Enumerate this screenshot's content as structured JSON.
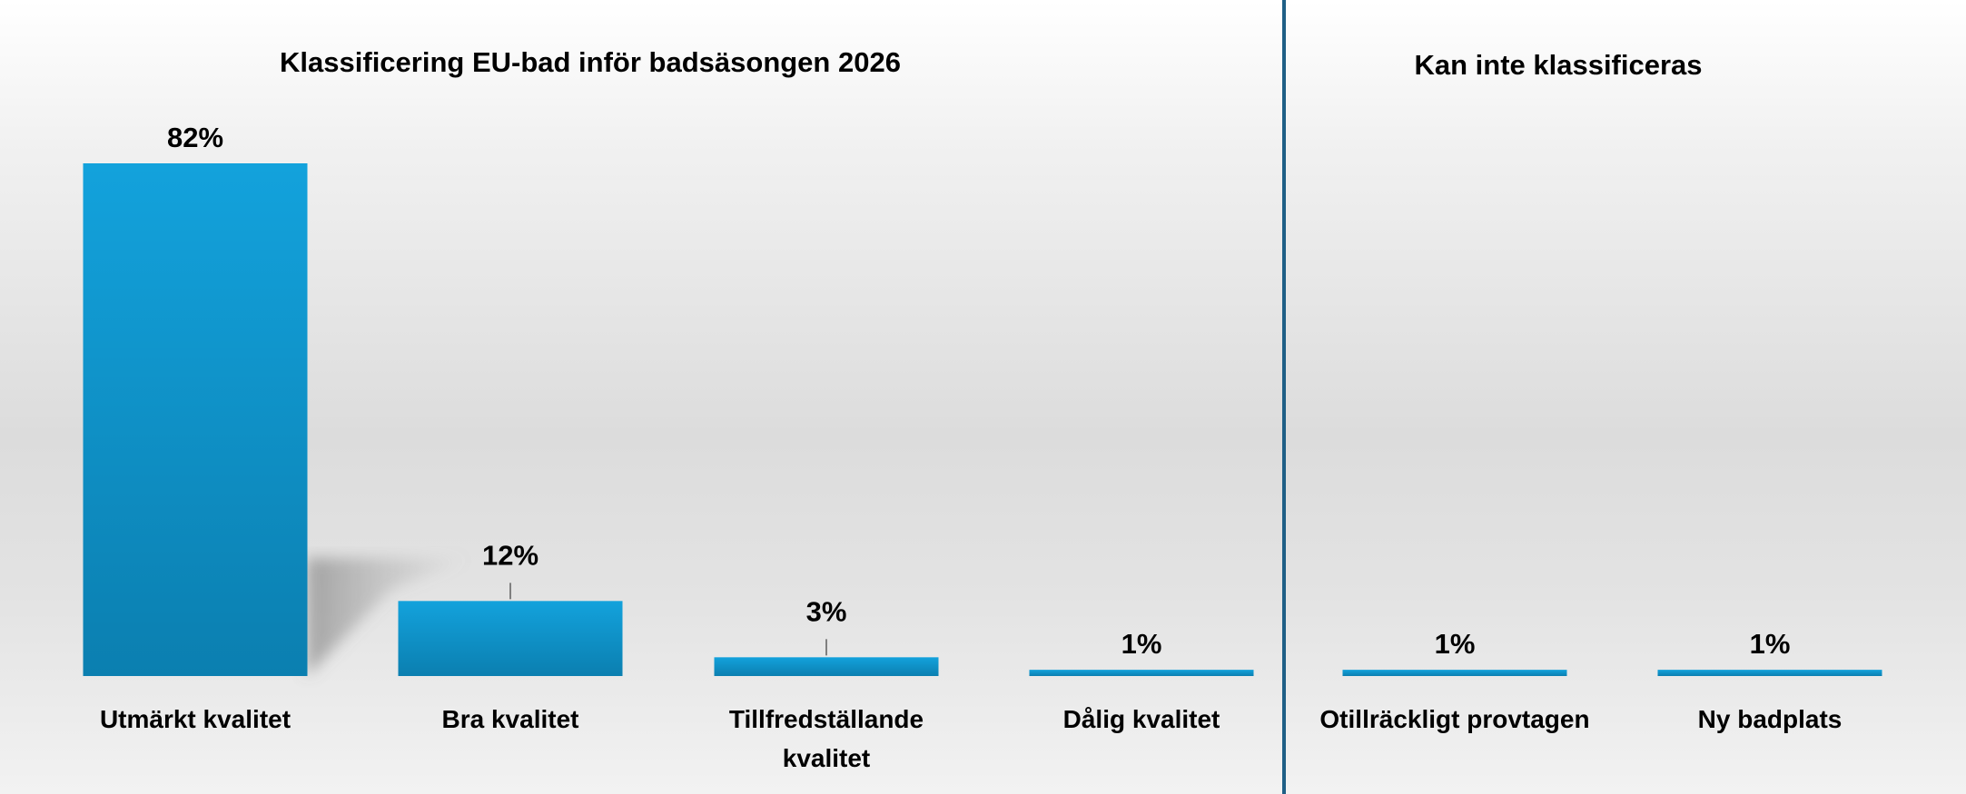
{
  "chart_data": [
    {
      "type": "bar",
      "title": "Klassificering EU-bad inför badsäsongen 2026",
      "categories": [
        [
          "Utmärkt kvalitet"
        ],
        [
          "Bra kvalitet"
        ],
        [
          "Tillfredställande",
          "kvalitet"
        ],
        [
          "Dålig kvalitet"
        ]
      ],
      "values": [
        82,
        12,
        3,
        1
      ],
      "data_labels": [
        "82%",
        "12%",
        "3%",
        "1%"
      ],
      "ylim": [
        0,
        82
      ],
      "grid": false
    },
    {
      "type": "bar",
      "title": "Kan inte klassificeras",
      "categories": [
        [
          "Otillräckligt provtagen"
        ],
        [
          "Ny badplats"
        ]
      ],
      "values": [
        1,
        1
      ],
      "data_labels": [
        "1%",
        "1%"
      ],
      "ylim": [
        0,
        82
      ],
      "grid": false
    }
  ],
  "colors": {
    "bar_top": "#13a2dc",
    "bar_bottom": "#0b7fb0",
    "divider": "#1f5f86",
    "leader_line": "#7f7f7f"
  }
}
